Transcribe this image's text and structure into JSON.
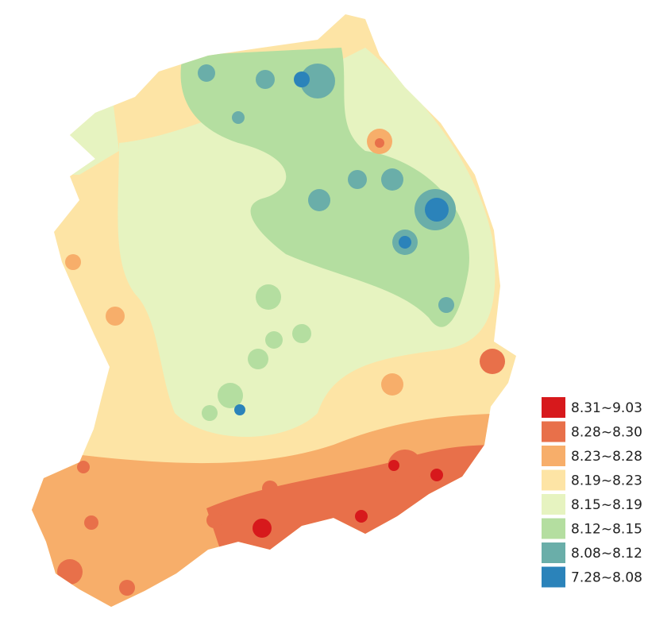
{
  "legend": {
    "items": [
      {
        "label": "8.31~9.03",
        "color": "#d7191c"
      },
      {
        "label": "8.28~8.30",
        "color": "#e8704a"
      },
      {
        "label": "8.23~8.28",
        "color": "#f7ae6a"
      },
      {
        "label": "8.19~8.23",
        "color": "#fde4a5"
      },
      {
        "label": "8.15~8.19",
        "color": "#e6f3c0"
      },
      {
        "label": "8.12~8.15",
        "color": "#b4dea0"
      },
      {
        "label": "8.08~8.12",
        "color": "#6aaea9"
      },
      {
        "label": "7.28~8.08",
        "color": "#2b83ba"
      }
    ]
  }
}
